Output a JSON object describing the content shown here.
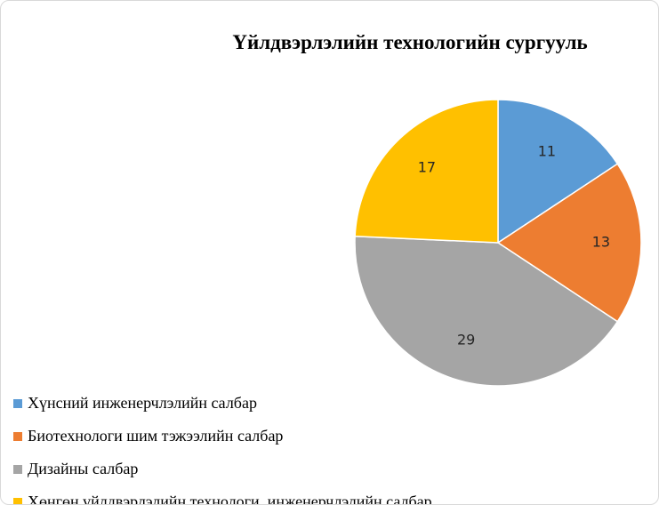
{
  "chart_data": {
    "type": "pie",
    "title": "Үйлдвэрлэлийн технологийн сургууль",
    "categories": [
      "Хүнсний инженерчлэлийн салбар",
      "Биотехнологи шим тэжээлийн салбар",
      "Дизайны салбар",
      "Хөнгөн үйлдвэрлэлийн технологи, инженерчлэлийн салбар"
    ],
    "values": [
      11,
      13,
      29,
      17
    ],
    "data_labels": [
      "11",
      "13",
      "29",
      "17"
    ],
    "colors": [
      "#5B9BD5",
      "#ED7D31",
      "#A5A5A5",
      "#FFC000"
    ],
    "legend_position": "bottom-left"
  }
}
